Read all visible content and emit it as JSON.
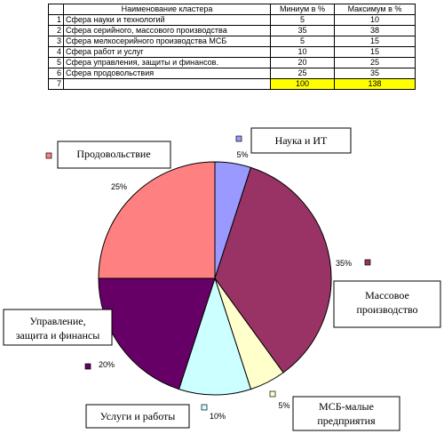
{
  "table": {
    "headers": [
      "Наименование кластера",
      "Миниум в %",
      "Максимум в %"
    ],
    "rows": [
      {
        "num": "1",
        "name": "Сфера науки и технологий",
        "min": "5",
        "max": "10"
      },
      {
        "num": "2",
        "name": "Сфера  серийного, массового производства",
        "min": "35",
        "max": "38"
      },
      {
        "num": "3",
        "name": "Сфера мелкосерийного производства МСБ",
        "min": "5",
        "max": "15"
      },
      {
        "num": "4",
        "name": "Сфера работ и услуг",
        "min": "10",
        "max": "15"
      },
      {
        "num": "5",
        "name": "Сфера управления, защиты и финансов.",
        "min": "20",
        "max": "25"
      },
      {
        "num": "6",
        "name": "Сфера продовольствия",
        "min": "25",
        "max": "35"
      }
    ],
    "total": {
      "num": "7",
      "min": "100",
      "max": "138"
    }
  },
  "chart_data": {
    "type": "pie",
    "slices": [
      {
        "label": "Наука и ИТ",
        "label_lines": [
          "Наука и ИТ"
        ],
        "value": 5,
        "pct_label": "5%",
        "color": "#9999ff"
      },
      {
        "label": "Массовое производство",
        "label_lines": [
          "Массовое",
          "производство"
        ],
        "value": 35,
        "pct_label": "35%",
        "color": "#993366"
      },
      {
        "label": "МСБ-малые предприятия",
        "label_lines": [
          "МСБ-малые",
          "предприятия"
        ],
        "value": 5,
        "pct_label": "5%",
        "color": "#ffffcc"
      },
      {
        "label": "Услуги и работы",
        "label_lines": [
          "Услуги и работы"
        ],
        "value": 10,
        "pct_label": "10%",
        "color": "#ccffff"
      },
      {
        "label": "Управление, защита и финансы",
        "label_lines": [
          "Управление,",
          "защита и финансы"
        ],
        "value": 20,
        "pct_label": "20%",
        "color": "#660066"
      },
      {
        "label": "Продовольствие",
        "label_lines": [
          "Продовольствие"
        ],
        "value": 25,
        "pct_label": "25%",
        "color": "#ff8080"
      }
    ]
  }
}
